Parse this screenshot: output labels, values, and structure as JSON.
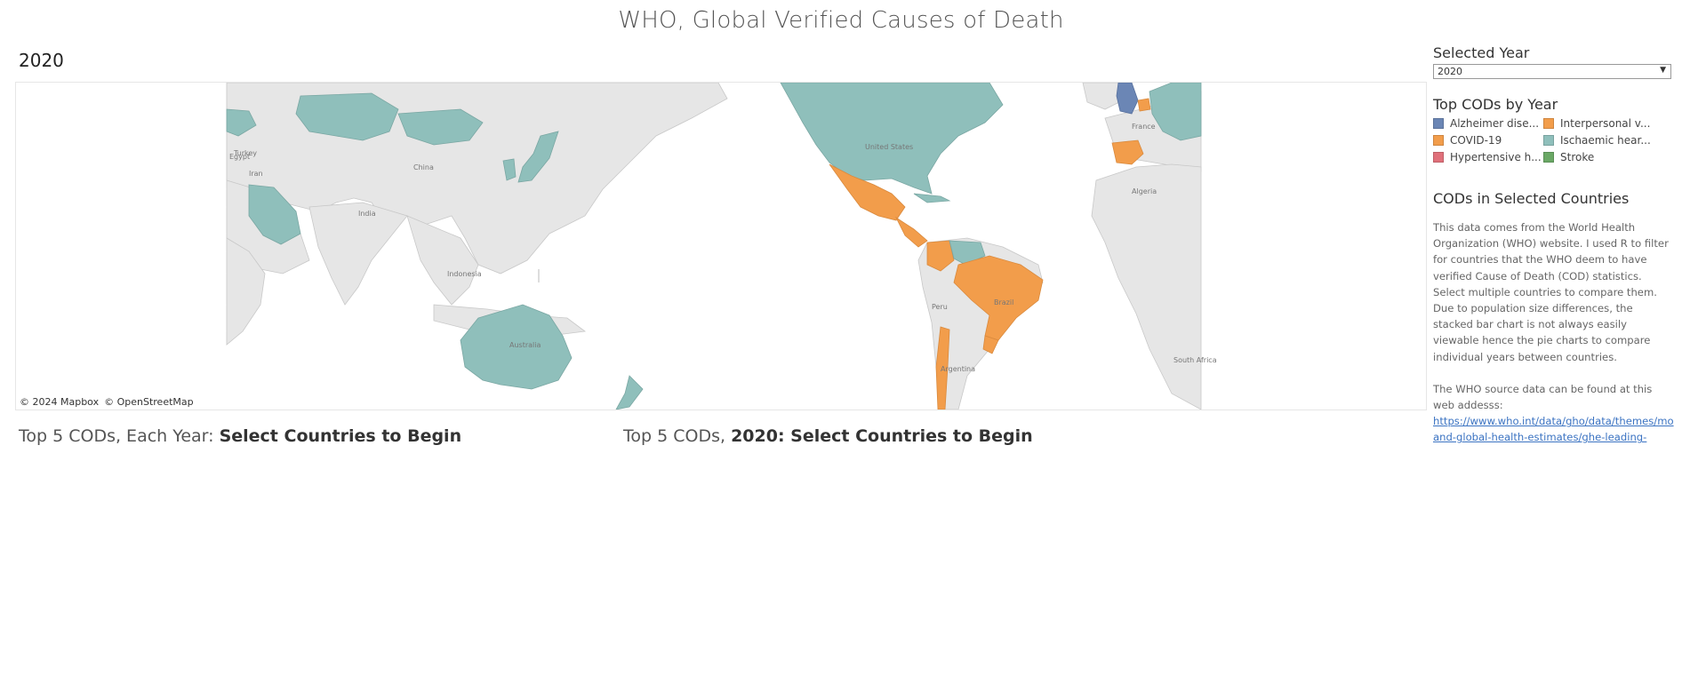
{
  "header": {
    "title": "WHO, Global Verified Causes of Death"
  },
  "map": {
    "year_heading": "2020",
    "attribution": [
      "© 2024 Mapbox",
      "© OpenStreetMap"
    ],
    "labels": [
      "Turkey",
      "Iran",
      "China",
      "India",
      "Indonesia",
      "Australia",
      "Peru",
      "Brazil",
      "Argentina",
      "France",
      "Algeria",
      "South Africa",
      "Egypt",
      "United States"
    ],
    "colors": {
      "land": "#e6e6e6",
      "border": "#c8c8c8",
      "ischaemic": "#8fbfbb",
      "covid": "#f29d4b",
      "alzheimer": "#6b86b5"
    }
  },
  "charts": {
    "each_year_prefix": "Top 5 CODs, Each Year: ",
    "each_year_action": "Select Countries to Begin",
    "selected_prefix": "Top 5 CODs, ",
    "selected_year": "2020",
    "selected_action": ": Select Countries to Begin"
  },
  "sidebar": {
    "selected_year_label": "Selected Year",
    "selected_year_value": "2020",
    "legend_title": "Top CODs by Year",
    "legend": [
      {
        "label": "Alzheimer dise...",
        "color": "#6b86b5"
      },
      {
        "label": "Interpersonal v...",
        "color": "#f29d4b"
      },
      {
        "label": "COVID-19",
        "color": "#f29d4b"
      },
      {
        "label": "Ischaemic hear...",
        "color": "#8fbfbb"
      },
      {
        "label": "Hypertensive h...",
        "color": "#e0707a"
      },
      {
        "label": "Stroke",
        "color": "#6aa865"
      }
    ],
    "cods_title": "CODs in Selected Countries",
    "description": "This data comes from the World Health Organization (WHO) website. I used R to filter for countries that the WHO deem to have verified Cause of Death (COD) statistics. Select multiple countries to compare them. Due to population size differences, the stacked bar chart is not always easily viewable hence the pie charts to compare individual years between countries.",
    "source_intro": "The WHO source data can be found at this web addesss:",
    "source_link_line1": "https://www.who.int/data/gho/data/themes/mo",
    "source_link_line2": "and-global-health-estimates/ghe-leading-"
  }
}
